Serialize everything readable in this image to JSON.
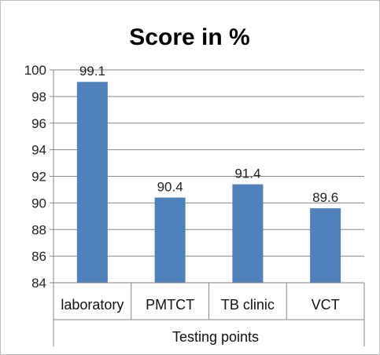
{
  "chart_data": {
    "type": "bar",
    "title": "Score in %",
    "xlabel": "Testing points",
    "ylabel": "",
    "categories": [
      "laboratory",
      "PMTCT",
      "TB clinic",
      "VCT"
    ],
    "values": [
      99.1,
      90.4,
      91.4,
      89.6
    ],
    "value_labels": [
      "99.1",
      "90.4",
      "91.4",
      "89.6"
    ],
    "ylim": [
      84,
      100
    ],
    "yticks": [
      84,
      86,
      88,
      90,
      92,
      94,
      96,
      98,
      100
    ],
    "ytick_labels": [
      "84",
      "86",
      "88",
      "90",
      "92",
      "94",
      "96",
      "98",
      "100"
    ],
    "grid": true,
    "legend": "none",
    "bar_color": "#4f81bd",
    "grid_color": "#868686"
  }
}
